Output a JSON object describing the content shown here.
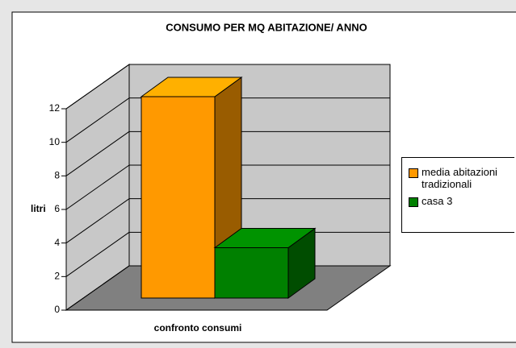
{
  "chart_data": {
    "type": "bar3d",
    "title": "CONSUMO PER MQ ABITAZIONE/ ANNO",
    "y_label": "litri",
    "categories": [
      "confronto consumi"
    ],
    "series": [
      {
        "name": "media abitazioni tradizionali",
        "color": "#ff9900",
        "values": [
          12
        ]
      },
      {
        "name": "casa 3",
        "color": "#008000",
        "values": [
          3
        ]
      }
    ],
    "ylim": [
      0,
      12
    ],
    "yticks": [
      0,
      2,
      4,
      6,
      8,
      10,
      12
    ],
    "grid": true,
    "legend": "right"
  }
}
